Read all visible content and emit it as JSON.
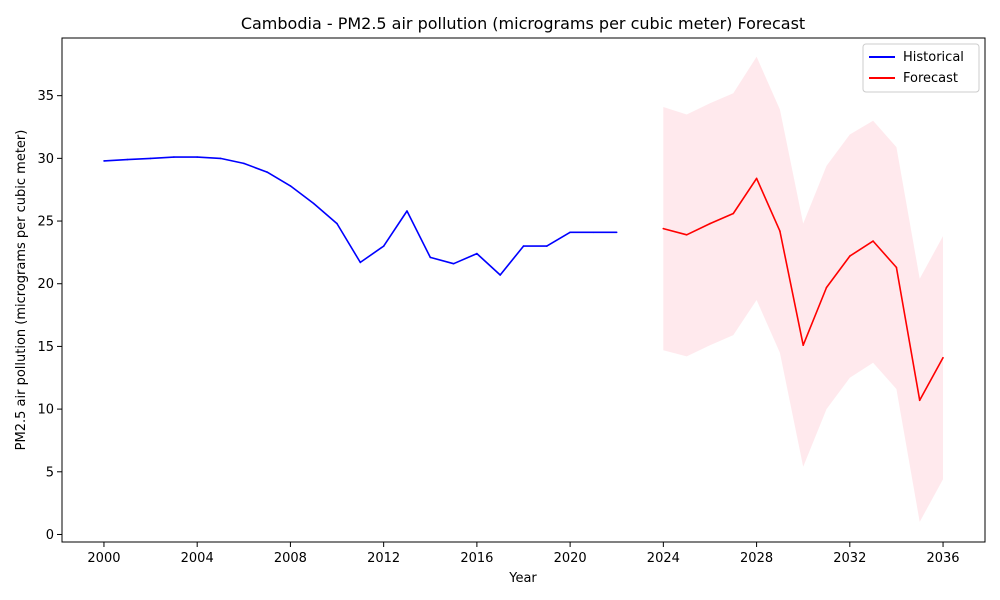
{
  "chart_data": {
    "type": "line",
    "title": "Cambodia - PM2.5 air pollution (micrograms per cubic meter) Forecast",
    "xlabel": "Year",
    "ylabel": "PM2.5 air pollution (micrograms per cubic meter)",
    "xlim": [
      1998.2,
      2037.8
    ],
    "ylim": [
      -0.6,
      39.6
    ],
    "xticks": [
      2000,
      2004,
      2008,
      2012,
      2016,
      2020,
      2024,
      2028,
      2032,
      2036
    ],
    "yticks": [
      0,
      5,
      10,
      15,
      20,
      25,
      30,
      35
    ],
    "grid": false,
    "legend_position": "top-right",
    "series": [
      {
        "name": "Historical",
        "color": "#0000ff",
        "x": [
          2000,
          2001,
          2002,
          2003,
          2004,
          2005,
          2006,
          2007,
          2008,
          2009,
          2010,
          2011,
          2012,
          2013,
          2014,
          2015,
          2016,
          2017,
          2018,
          2019,
          2020,
          2021,
          2022
        ],
        "y": [
          29.8,
          29.9,
          30.0,
          30.1,
          30.1,
          30.0,
          29.6,
          28.9,
          27.8,
          26.4,
          24.8,
          21.7,
          23.0,
          25.8,
          22.1,
          21.6,
          22.4,
          20.7,
          23.0,
          23.0,
          24.1,
          24.1,
          24.1
        ]
      },
      {
        "name": "Forecast",
        "color": "#ff0000",
        "x": [
          2024,
          2025,
          2026,
          2027,
          2028,
          2029,
          2030,
          2031,
          2032,
          2033,
          2034,
          2035,
          2036
        ],
        "y": [
          24.4,
          23.9,
          24.8,
          25.6,
          28.4,
          24.2,
          15.1,
          19.7,
          22.2,
          23.4,
          21.3,
          10.7,
          14.1
        ],
        "upper": [
          34.1,
          33.5,
          34.4,
          35.2,
          38.1,
          33.9,
          24.8,
          29.4,
          31.9,
          33.0,
          30.9,
          20.4,
          23.8
        ],
        "lower": [
          14.7,
          14.2,
          15.1,
          15.9,
          18.7,
          14.5,
          5.4,
          10.0,
          12.5,
          13.7,
          11.6,
          1.0,
          4.4
        ]
      }
    ],
    "band_color": "#ffc0cb"
  }
}
